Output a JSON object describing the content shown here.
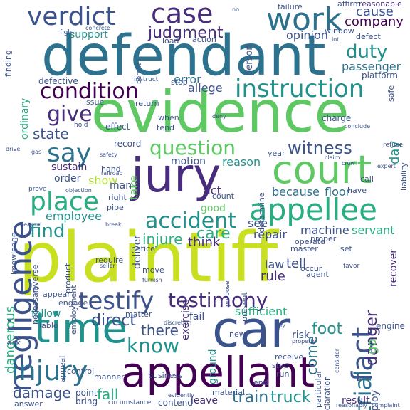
{
  "words": {
    "plaintiff": "plaintiff",
    "defendant": "defendant",
    "evidence": "evidence",
    "jury": "jury",
    "appellant": "appellant",
    "car": "car",
    "court": "court",
    "verdict": "verdict",
    "case": "case",
    "work": "work",
    "negligence": "negligence",
    "appellee": "appellee",
    "instruction": "instruction",
    "time": "time",
    "testify": "testify",
    "testimony": "testimony",
    "condition": "condition",
    "say": "say",
    "place": "place",
    "accident": "accident",
    "question": "question",
    "injury": "injury",
    "fact": "fact",
    "trial": "trial",
    "witness": "witness",
    "give": "give",
    "know": "know",
    "state": "state",
    "judgment": "judgment",
    "company": "company",
    "cause": "cause",
    "duty": "duty",
    "find": "find",
    "foot": "foot",
    "dangerous": "dangerous",
    "direct": "direct",
    "danger": "danger",
    "there": "there",
    "care": "care",
    "damage": "damage",
    "fall": "fall",
    "train": "train",
    "truck": "truck",
    "sufficient": "sufficient",
    "come": "come",
    "employee": "employee",
    "injure": "injure",
    "passenger": "passenger",
    "opinion": "opinion",
    "support": "support",
    "error": "error",
    "allege": "allege",
    "day": "day",
    "go": "go",
    "machine": "machine",
    "servant": "servant",
    "repair": "repair",
    "see": "see",
    "tell": "tell",
    "rule": "rule",
    "law": "law",
    "think": "think",
    "show": "show",
    "take": "take",
    "sustain": "sustain",
    "order": "order",
    "because": "because",
    "floor": "floor",
    "good": "good",
    "act": "act",
    "reason": "reason",
    "motion": "motion",
    "man": "man",
    "deliver": "deliver",
    "ordinary": "ordinary",
    "defective": "defective",
    "follow": "follow",
    "exercise": "exercise",
    "recover": "recover",
    "result": "result",
    "leave": "leave",
    "contend": "contend",
    "employ": "employ",
    "fail": "fail",
    "point": "point",
    "bring": "bring",
    "engine": "engine",
    "risk": "risk",
    "ground": "ground",
    "record": "record",
    "effect": "effect",
    "when": "when",
    "tend": "tend",
    "person": "person",
    "platform": "platform",
    "charge": "charge",
    "reasonable": "reasonable",
    "affirm": "affirm",
    "failure": "failure",
    "finding": "finding",
    "issue": "issue",
    "require": "require",
    "notice": "notice",
    "master": "master",
    "operate": "operate",
    "present": "present",
    "agent": "agent",
    "proper": "proper",
    "appeal": "appeal",
    "ask": "ask",
    "stop": "stop",
    "right": "right",
    "pipe": "pipe",
    "return": "return",
    "material": "material",
    "step": "step",
    "run": "run",
    "end": "end",
    "new": "new",
    "business": "business",
    "control": "control",
    "manner": "manner",
    "engage": "engage",
    "liable": "liable",
    "appear": "appear",
    "receive": "receive",
    "liability": "liability",
    "call": "call",
    "have": "have",
    "safe": "safe",
    "determine": "determine",
    "action": "action",
    "load": "load",
    "window": "window",
    "defect": "defect",
    "product": "product",
    "employment": "employment",
    "necessary": "necessary",
    "knowledge": "knowledge",
    "reverse": "reverse",
    "answer": "answer",
    "count": "count",
    "year": "year",
    "hand": "hand",
    "circumstance": "circumstance",
    "particular": "particular",
    "declaration": "declaration",
    "move": "move",
    "matter": "matter",
    "fight": "fight",
    "occur": "occur",
    "set": "set",
    "hold": "hold",
    "prove": "prove",
    "permit": "permit",
    "concrete": "concrete",
    "no": "no",
    "lot": "lot",
    "claim": "claim",
    "crew": "crew",
    "boy": "boy",
    "purpose": "purpose",
    "expert": "expert",
    "refuse": "refuse",
    "gas": "gas",
    "drive": "drive",
    "safety": "safety",
    "railroad": "railroad",
    "objection": "objection",
    "deny": "deny",
    "conclude": "conclude",
    "instruct": "instruct",
    "favor": "favor",
    "general": "general",
    "furnish": "furnish",
    "break": "break",
    "seller": "seller",
    "reasonably": "reasonably",
    "complaint": "complaint",
    "property": "property",
    "consider": "consider",
    "evidently": "evidently",
    "discretion": "discretion"
  },
  "palette": {
    "purple": "#440154",
    "indigo": "#472d7b",
    "blue": "#3b528b",
    "steel": "#2c728e",
    "teal": "#21918c",
    "sea": "#28ae80",
    "green": "#5ec962",
    "lime": "#addc30",
    "yellow": "#c8e020"
  }
}
